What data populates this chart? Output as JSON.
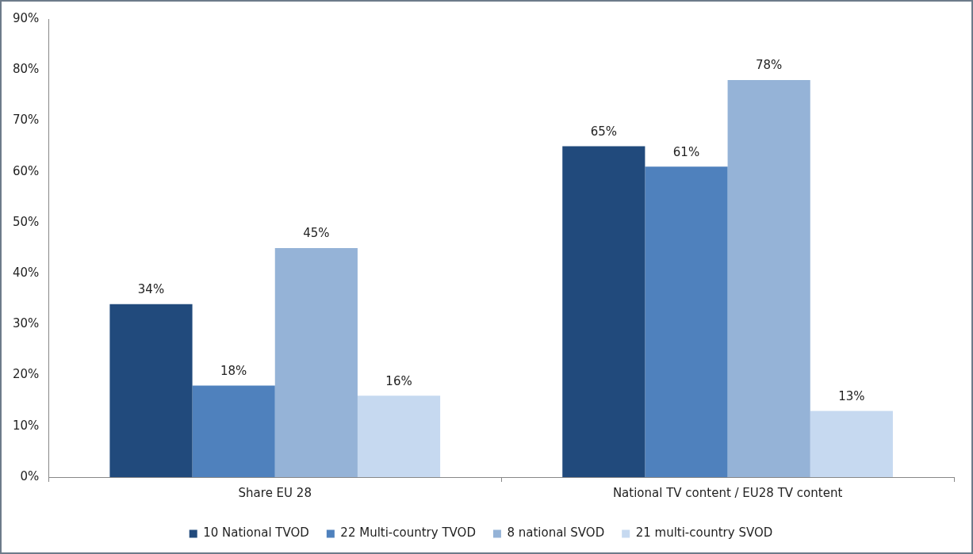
{
  "chart_data": {
    "type": "bar",
    "categories": [
      "Share EU 28",
      "National TV content / EU28 TV content"
    ],
    "series": [
      {
        "name": "10 National TVOD",
        "color": "#214a7c",
        "values": [
          34,
          65
        ],
        "value_labels": [
          "34%",
          "65%"
        ]
      },
      {
        "name": "22 Multi-country TVOD",
        "color": "#4f81bd",
        "values": [
          18,
          61
        ],
        "value_labels": [
          "18%",
          "61%"
        ]
      },
      {
        "name": "8 national SVOD",
        "color": "#95b3d7",
        "values": [
          45,
          78
        ],
        "value_labels": [
          "45%",
          "78%"
        ]
      },
      {
        "name": "21 multi-country SVOD",
        "color": "#c6d9f0",
        "values": [
          16,
          13
        ],
        "value_labels": [
          "16%",
          "13%"
        ]
      }
    ],
    "ylim": [
      0,
      90
    ],
    "yticks": [
      {
        "value": 0,
        "label": "0%"
      },
      {
        "value": 10,
        "label": "10%"
      },
      {
        "value": 20,
        "label": "20%"
      },
      {
        "value": 30,
        "label": "30%"
      },
      {
        "value": 40,
        "label": "40%"
      },
      {
        "value": 50,
        "label": "50%"
      },
      {
        "value": 60,
        "label": "60%"
      },
      {
        "value": 70,
        "label": "70%"
      },
      {
        "value": 80,
        "label": "80%"
      },
      {
        "value": 90,
        "label": "90%"
      }
    ],
    "grid": false,
    "legend": "bottom"
  }
}
